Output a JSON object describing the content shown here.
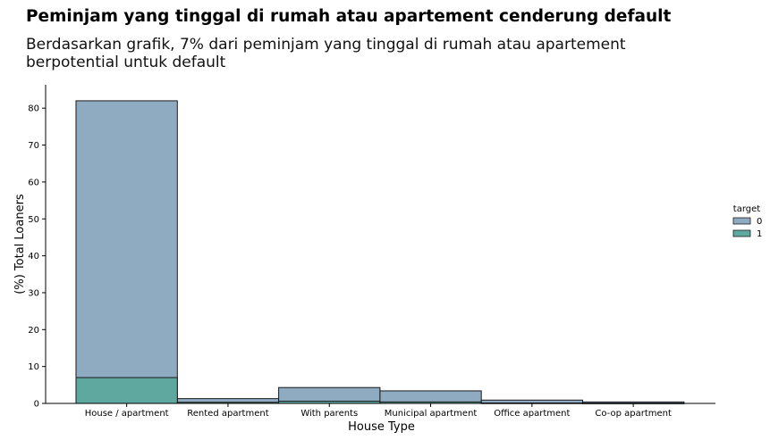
{
  "title": "Peminjam yang tinggal di rumah atau apartement cenderung default",
  "subtitle": "Berdasarkan grafik, 7% dari peminjam yang tinggal di rumah atau apartement berpotential untuk default",
  "colors": {
    "target0": "#8fabc2",
    "target1": "#5fa8a0",
    "edge": "#1a1a1a"
  },
  "chart_data": {
    "type": "bar",
    "stacked": "overlay",
    "title": "",
    "xlabel": "House Type",
    "ylabel": "(%) Total Loaners",
    "categories": [
      "House / apartment",
      "Rented apartment",
      "With parents",
      "Municipal apartment",
      "Office apartment",
      "Co-op apartment"
    ],
    "series": [
      {
        "name": "0",
        "values": [
          82.0,
          1.3,
          4.3,
          3.4,
          0.9,
          0.4
        ]
      },
      {
        "name": "1",
        "values": [
          7.0,
          0.3,
          0.6,
          0.4,
          0.1,
          0.05
        ]
      }
    ],
    "ylim": [
      0,
      85
    ],
    "yticks": [
      0,
      10,
      20,
      30,
      40,
      50,
      60,
      70,
      80
    ],
    "grid": false,
    "legend": {
      "title": "target",
      "placement": "right"
    }
  }
}
